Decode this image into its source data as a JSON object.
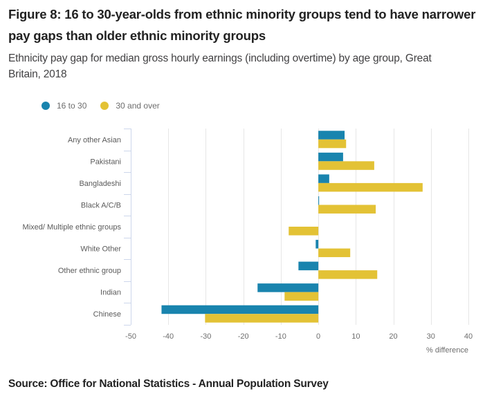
{
  "header": {
    "title": "Figure 8: 16 to 30-year-olds from ethnic minority groups tend to have narrower pay gaps than older ethnic minority groups",
    "subtitle": "Ethnicity pay gap for median gross hourly earnings (including overtime) by age group, Great Britain, 2018"
  },
  "legend": [
    {
      "label": "16 to 30",
      "color": "#1984ae"
    },
    {
      "label": "30 and over",
      "color": "#e3c235"
    }
  ],
  "footer": {
    "source": "Source: Office for National Statistics - Annual Population Survey"
  },
  "chart_data": {
    "type": "bar",
    "orientation": "horizontal",
    "title": "Figure 8: 16 to 30-year-olds from ethnic minority groups tend to have narrower pay gaps than older ethnic minority groups",
    "subtitle": "Ethnicity pay gap for median gross hourly earnings (including overtime) by age group, Great Britain, 2018",
    "xlabel": "% difference",
    "ylabel": "",
    "xlim": [
      -50,
      40
    ],
    "xticks": [
      -50,
      -40,
      -30,
      -20,
      -10,
      0,
      10,
      20,
      30,
      40
    ],
    "grid": true,
    "legend_position": "top-left",
    "categories": [
      "Any other Asian",
      "Pakistani",
      "Bangladeshi",
      "Black A/C/B",
      "Mixed/ Multiple ethnic groups",
      "White Other",
      "Other ethnic group",
      "Indian",
      "Chinese"
    ],
    "series": [
      {
        "name": "16 to 30",
        "color": "#1984ae",
        "values": [
          7.0,
          6.6,
          2.9,
          0.2,
          null,
          -0.7,
          -5.3,
          -16.2,
          -41.8
        ]
      },
      {
        "name": "30 and over",
        "color": "#e3c235",
        "values": [
          7.4,
          14.9,
          27.8,
          15.3,
          -7.9,
          8.5,
          15.7,
          -9.0,
          -30.2
        ]
      }
    ]
  }
}
